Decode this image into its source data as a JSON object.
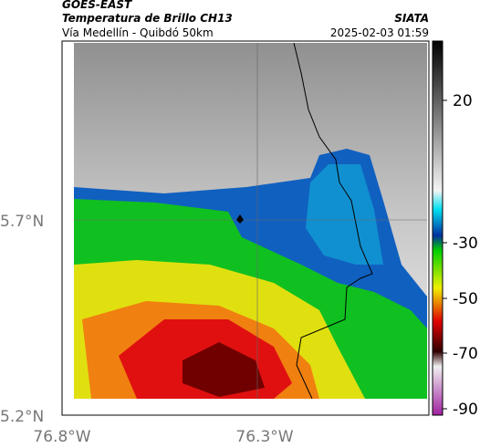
{
  "header": {
    "title": "GOES-EAST",
    "subtitle": "Temperatura de Brillo CH13",
    "source": "SIATA",
    "route": "Vía Medellín - Quibdó 50km",
    "timestamp": "2025-02-03 01:59"
  },
  "axes": {
    "lat_labels": [
      "5.7°N",
      "5.2°N"
    ],
    "lon_labels": [
      "76.8°W",
      "76.3°W"
    ]
  },
  "colorbar": {
    "tick_labels": [
      "20",
      "-30",
      "-50",
      "-70",
      "-90"
    ]
  }
}
